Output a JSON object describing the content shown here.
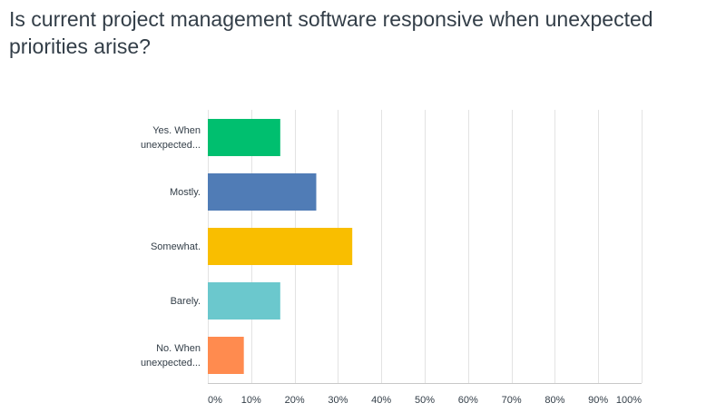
{
  "question": "Is current project management software responsive when unexpected priorities arise?",
  "chart_data": {
    "type": "bar",
    "orientation": "horizontal",
    "title": "",
    "categories": [
      [
        "Yes. When",
        "unexpected..."
      ],
      [
        "Mostly."
      ],
      [
        "Somewhat."
      ],
      [
        "Barely."
      ],
      [
        "No. When",
        "unexpected..."
      ]
    ],
    "values": [
      16.7,
      25,
      33.3,
      16.7,
      8.3
    ],
    "colors": [
      "#00bf6f",
      "#507cb6",
      "#f9be00",
      "#6bc8cd",
      "#ff8b4f"
    ],
    "xlim": [
      0,
      100
    ],
    "ticks": [
      "0%",
      "10%",
      "20%",
      "30%",
      "40%",
      "50%",
      "60%",
      "70%",
      "80%",
      "90%",
      "100%"
    ],
    "grid": true
  }
}
